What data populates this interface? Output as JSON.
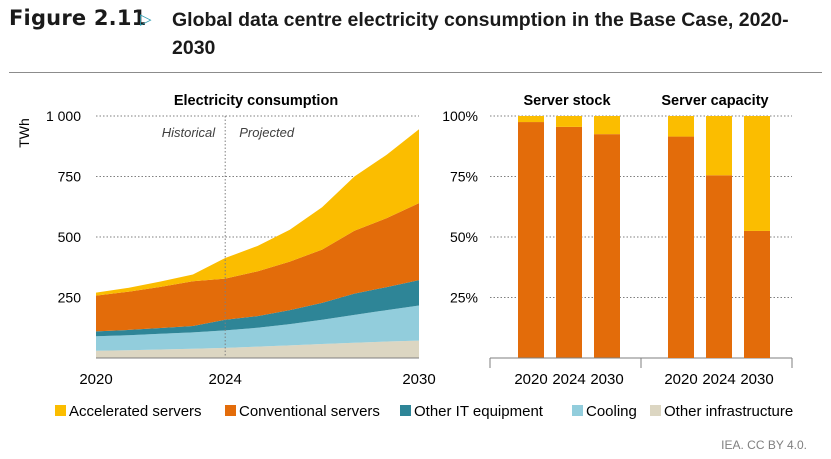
{
  "header": {
    "figure_label": "Figure 2.11",
    "title": "Global data centre electricity consumption in the Base Case, 2020-2030"
  },
  "source": "IEA. CC BY 4.0.",
  "colors": {
    "accelerated": "#fbbd00",
    "conventional": "#e36c0a",
    "other_it": "#2e8597",
    "cooling": "#92cddc",
    "other_infra": "#dcd6c2"
  },
  "chart_data": [
    {
      "type": "area",
      "title": "Electricity consumption",
      "ylabel": "TWh",
      "annotations": [
        "Historical",
        "Projected"
      ],
      "x": [
        2020,
        2021,
        2022,
        2023,
        2024,
        2025,
        2026,
        2027,
        2028,
        2029,
        2030
      ],
      "x_ticks": [
        "2020",
        "2024",
        "2030"
      ],
      "y_ticks": [
        "1 000",
        "750",
        "500",
        "250"
      ],
      "ylim": [
        0,
        1000
      ],
      "stacked": true,
      "series": [
        {
          "name": "Other infrastructure",
          "color": "other_infra",
          "values": [
            30,
            32,
            35,
            38,
            42,
            47,
            52,
            58,
            63,
            68,
            72
          ]
        },
        {
          "name": "Cooling",
          "color": "cooling",
          "values": [
            60,
            62,
            65,
            68,
            72,
            78,
            88,
            100,
            115,
            130,
            145
          ]
        },
        {
          "name": "Other IT equipment",
          "color": "other_it",
          "values": [
            20,
            22,
            24,
            26,
            44,
            48,
            58,
            70,
            88,
            95,
            105
          ]
        },
        {
          "name": "Conventional servers",
          "color": "conventional",
          "values": [
            148,
            158,
            170,
            185,
            170,
            185,
            200,
            220,
            260,
            285,
            318
          ]
        },
        {
          "name": "Accelerated servers",
          "color": "accelerated",
          "values": [
            12,
            16,
            22,
            28,
            85,
            105,
            132,
            175,
            224,
            262,
            305
          ]
        }
      ]
    },
    {
      "type": "bar",
      "title": "Server stock",
      "stacked": true,
      "categories": [
        "2020",
        "2024",
        "2030"
      ],
      "y_ticks": [
        "100%",
        "75%",
        "50%",
        "25%"
      ],
      "ylim": [
        0,
        100
      ],
      "series": [
        {
          "name": "Conventional servers",
          "color": "conventional",
          "values": [
            97.5,
            95.5,
            92.5
          ]
        },
        {
          "name": "Accelerated servers",
          "color": "accelerated",
          "values": [
            2.5,
            4.5,
            7.5
          ]
        }
      ]
    },
    {
      "type": "bar",
      "title": "Server capacity",
      "stacked": true,
      "categories": [
        "2020",
        "2024",
        "2030"
      ],
      "ylim": [
        0,
        100
      ],
      "series": [
        {
          "name": "Conventional servers",
          "color": "conventional",
          "values": [
            91.5,
            75.5,
            52.5
          ]
        },
        {
          "name": "Accelerated servers",
          "color": "accelerated",
          "values": [
            8.5,
            24.5,
            47.5
          ]
        }
      ]
    }
  ],
  "legend": [
    "Accelerated servers",
    "Conventional servers",
    "Other IT equipment",
    "Cooling",
    "Other infrastructure"
  ]
}
